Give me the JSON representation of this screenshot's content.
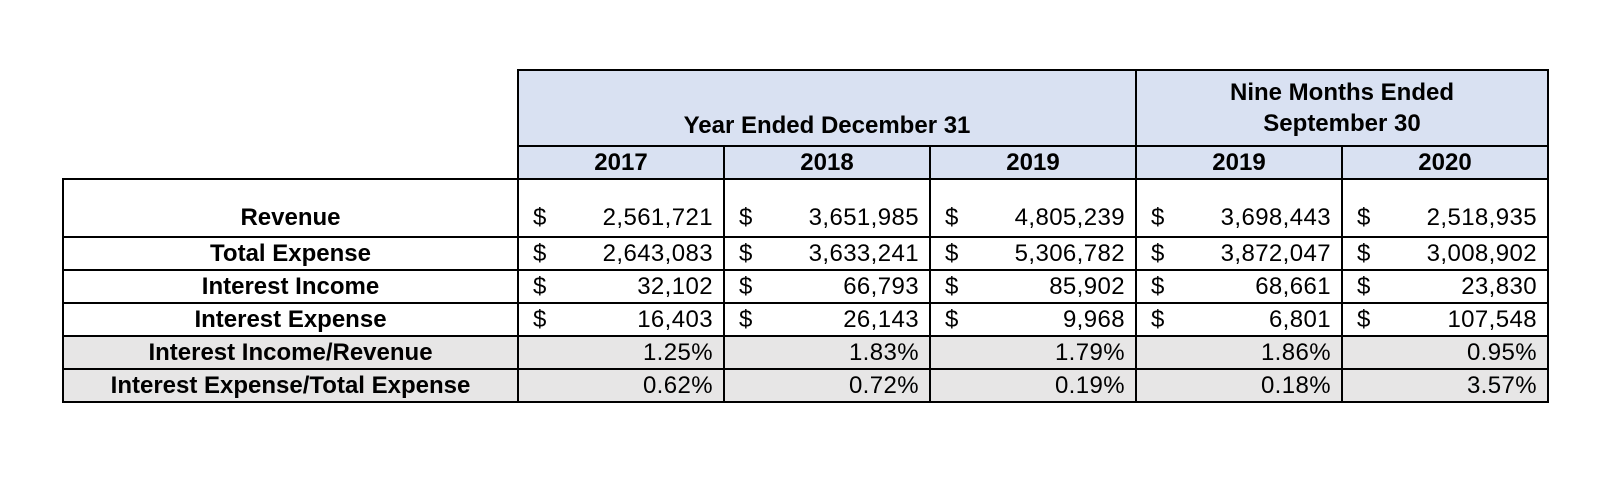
{
  "chart_data": {
    "type": "table",
    "col_groups": [
      {
        "title": "Year Ended December 31",
        "columns": [
          "2017",
          "2018",
          "2019"
        ]
      },
      {
        "title": "Nine Months Ended September 30",
        "columns": [
          "2019",
          "2020"
        ]
      }
    ],
    "currency_symbol": "$",
    "rows": [
      {
        "label": "Revenue",
        "format": "currency",
        "values": [
          "2,561,721",
          "3,651,985",
          "4,805,239",
          "3,698,443",
          "2,518,935"
        ]
      },
      {
        "label": "Total Expense",
        "format": "currency",
        "values": [
          "2,643,083",
          "3,633,241",
          "5,306,782",
          "3,872,047",
          "3,008,902"
        ]
      },
      {
        "label": "Interest Income",
        "format": "currency",
        "values": [
          "32,102",
          "66,793",
          "85,902",
          "68,661",
          "23,830"
        ]
      },
      {
        "label": "Interest Expense",
        "format": "currency",
        "values": [
          "16,403",
          "26,143",
          "9,968",
          "6,801",
          "107,548"
        ]
      },
      {
        "label": "Interest Income/Revenue",
        "format": "percent",
        "values": [
          "1.25%",
          "1.83%",
          "1.79%",
          "1.86%",
          "0.95%"
        ]
      },
      {
        "label": "Interest Expense/Total Expense",
        "format": "percent",
        "values": [
          "0.62%",
          "0.72%",
          "0.19%",
          "0.18%",
          "3.57%"
        ]
      }
    ],
    "colors": {
      "header_bg": "#D9E1F2",
      "ratio_row_bg": "#E7E6E6",
      "border": "#000000",
      "text": "#000000"
    },
    "layout": {
      "grid": "full-borders",
      "ratio_rows_shaded": true,
      "first_group_span": 3,
      "second_group_span": 2
    }
  }
}
